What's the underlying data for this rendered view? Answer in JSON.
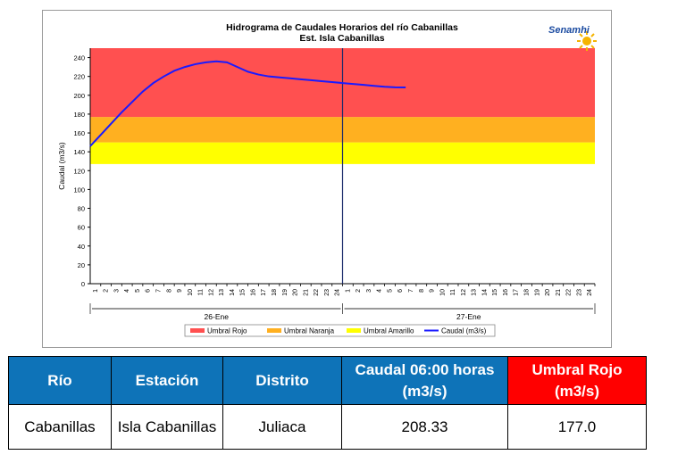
{
  "chart_data": {
    "type": "line",
    "title": "Hidrograma de Caudales Horarios del río Cabanillas",
    "subtitle": "Est. Isla Cabanillas",
    "ylabel": "Caudal  (m3/s)",
    "ylim": [
      0,
      250
    ],
    "yticks": [
      "0",
      "20",
      "40",
      "60",
      "80",
      "100",
      "120",
      "140",
      "160",
      "180",
      "200",
      "220",
      "240"
    ],
    "days": [
      "26-Ene",
      "27-Ene"
    ],
    "hours": [
      "1",
      "2",
      "3",
      "4",
      "5",
      "6",
      "7",
      "8",
      "9",
      "10",
      "11",
      "12",
      "13",
      "14",
      "15",
      "16",
      "17",
      "18",
      "19",
      "20",
      "21",
      "22",
      "23",
      "24"
    ],
    "bands": [
      {
        "name": "Umbral Amarillo",
        "from": 127,
        "to": 150,
        "color": "#ffff00"
      },
      {
        "name": "Umbral Naranja",
        "from": 150,
        "to": 177,
        "color": "#ffb020"
      },
      {
        "name": "Umbral Rojo",
        "from": 177,
        "to": 250,
        "color": "#ff5050"
      }
    ],
    "legend": [
      "Umbral Rojo",
      "Umbral Naranja",
      "Umbral Amarillo",
      "Caudal (m3/s)"
    ],
    "series": [
      {
        "name": "Caudal (m3/s)",
        "color": "#1a1aff",
        "x": [
          0,
          1,
          2,
          3,
          4,
          5,
          6,
          7,
          8,
          9,
          10,
          11,
          12,
          13,
          14,
          15,
          16,
          17,
          18,
          19,
          20,
          21,
          22,
          23,
          24,
          25,
          26,
          27,
          28,
          29,
          30
        ],
        "values": [
          146,
          158,
          170,
          182,
          193,
          204,
          213,
          220,
          226,
          230,
          233,
          235,
          236,
          235,
          230,
          225,
          222,
          220,
          219,
          218,
          217,
          216,
          215,
          214,
          213,
          212,
          211,
          210,
          209,
          208.5,
          208.33
        ]
      }
    ],
    "marker_x": 24,
    "total_hours": 48
  },
  "logo": {
    "text": "Senamhi"
  },
  "table": {
    "headers": [
      "Río",
      "Estación",
      "Distrito",
      "Caudal  06:00 horas (m3/s)",
      "Umbral Rojo (m3/s)"
    ],
    "rows": [
      [
        "Cabanillas",
        "Isla Cabanillas",
        "Juliaca",
        "208.33",
        "177.0"
      ]
    ]
  }
}
